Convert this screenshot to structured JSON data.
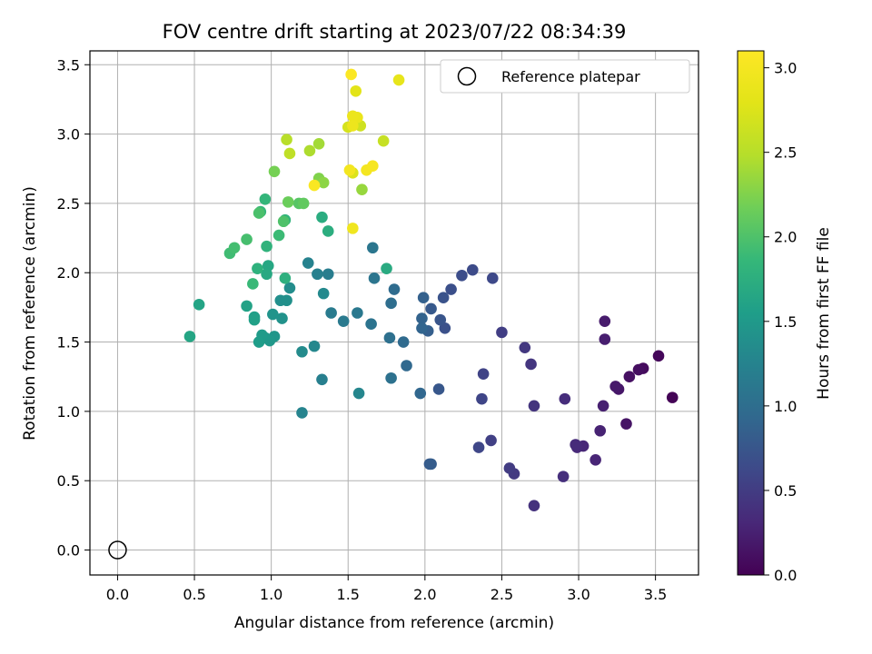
{
  "chart_data": {
    "type": "scatter",
    "title": "FOV centre drift starting at 2023/07/22 08:34:39",
    "xlabel": "Angular distance from reference (arcmin)",
    "ylabel": "Rotation from reference (arcmin)",
    "xlim": [
      -0.18,
      3.78
    ],
    "ylim": [
      -0.18,
      3.6
    ],
    "xticks": [
      "0.0",
      "0.5",
      "1.0",
      "1.5",
      "2.0",
      "2.5",
      "3.0",
      "3.5"
    ],
    "yticks": [
      "0.0",
      "0.5",
      "1.0",
      "1.5",
      "2.0",
      "2.5",
      "3.0",
      "3.5"
    ],
    "grid": true,
    "legend": {
      "label": "Reference platepar",
      "placement": "top-right"
    },
    "reference_point": {
      "x": 0.0,
      "y": 0.0
    },
    "colorbar": {
      "label": "Hours from first FF file",
      "colormap": "viridis",
      "range": [
        0.0,
        3.1
      ],
      "ticks": [
        "0.0",
        "0.5",
        "1.0",
        "1.5",
        "2.0",
        "2.5",
        "3.0"
      ]
    },
    "points": [
      [
        3.61,
        1.1,
        0.02
      ],
      [
        3.52,
        1.4,
        0.05
      ],
      [
        3.42,
        1.31,
        0.08
      ],
      [
        3.39,
        1.3,
        0.1
      ],
      [
        3.33,
        1.25,
        0.12
      ],
      [
        3.31,
        0.91,
        0.15
      ],
      [
        3.26,
        1.16,
        0.17
      ],
      [
        3.24,
        1.18,
        0.19
      ],
      [
        3.17,
        1.65,
        0.21
      ],
      [
        3.17,
        1.52,
        0.23
      ],
      [
        3.16,
        1.04,
        0.25
      ],
      [
        3.14,
        0.86,
        0.27
      ],
      [
        3.11,
        0.65,
        0.29
      ],
      [
        3.03,
        0.75,
        0.3
      ],
      [
        2.99,
        0.74,
        0.32
      ],
      [
        2.98,
        0.76,
        0.34
      ],
      [
        2.91,
        1.09,
        0.36
      ],
      [
        2.9,
        0.53,
        0.38
      ],
      [
        2.71,
        0.32,
        0.4
      ],
      [
        2.71,
        1.04,
        0.42
      ],
      [
        2.69,
        1.34,
        0.44
      ],
      [
        2.65,
        1.46,
        0.46
      ],
      [
        2.58,
        0.55,
        0.48
      ],
      [
        2.55,
        0.59,
        0.5
      ],
      [
        2.5,
        1.57,
        0.52
      ],
      [
        2.43,
        0.79,
        0.54
      ],
      [
        2.38,
        1.27,
        0.56
      ],
      [
        2.37,
        1.09,
        0.58
      ],
      [
        2.35,
        0.74,
        0.6
      ],
      [
        2.44,
        1.96,
        0.62
      ],
      [
        2.31,
        2.02,
        0.64
      ],
      [
        2.24,
        1.98,
        0.66
      ],
      [
        2.17,
        1.88,
        0.68
      ],
      [
        2.13,
        1.6,
        0.7
      ],
      [
        2.12,
        1.82,
        0.72
      ],
      [
        2.1,
        1.66,
        0.74
      ],
      [
        2.09,
        1.16,
        0.76
      ],
      [
        2.04,
        1.74,
        0.78
      ],
      [
        2.03,
        0.62,
        0.8
      ],
      [
        2.04,
        0.62,
        0.82
      ],
      [
        2.02,
        1.58,
        0.84
      ],
      [
        1.99,
        1.82,
        0.86
      ],
      [
        1.98,
        1.67,
        0.88
      ],
      [
        1.98,
        1.6,
        0.9
      ],
      [
        1.97,
        1.13,
        0.92
      ],
      [
        1.88,
        1.33,
        0.94
      ],
      [
        1.86,
        1.5,
        0.96
      ],
      [
        1.8,
        1.88,
        0.98
      ],
      [
        1.78,
        1.78,
        1.0
      ],
      [
        1.77,
        1.53,
        1.02
      ],
      [
        1.78,
        1.24,
        1.04
      ],
      [
        1.65,
        1.63,
        1.06
      ],
      [
        1.67,
        1.96,
        1.08
      ],
      [
        1.66,
        2.18,
        1.1
      ],
      [
        1.56,
        1.71,
        1.12
      ],
      [
        1.47,
        1.65,
        1.14
      ],
      [
        1.39,
        1.71,
        1.16
      ],
      [
        1.37,
        1.99,
        1.18
      ],
      [
        1.33,
        1.23,
        1.2
      ],
      [
        1.3,
        1.99,
        1.22
      ],
      [
        1.24,
        2.07,
        1.24
      ],
      [
        1.2,
        0.99,
        1.26
      ],
      [
        1.57,
        1.13,
        1.28
      ],
      [
        1.28,
        1.47,
        1.3
      ],
      [
        1.34,
        1.85,
        1.32
      ],
      [
        1.2,
        1.43,
        1.34
      ],
      [
        1.12,
        1.89,
        1.36
      ],
      [
        1.06,
        1.8,
        1.38
      ],
      [
        1.1,
        1.8,
        1.4
      ],
      [
        1.07,
        1.67,
        1.42
      ],
      [
        1.01,
        1.7,
        1.44
      ],
      [
        1.02,
        1.54,
        1.46
      ],
      [
        0.99,
        1.51,
        1.48
      ],
      [
        0.96,
        1.53,
        1.5
      ],
      [
        0.94,
        1.55,
        1.52
      ],
      [
        0.92,
        1.5,
        1.54
      ],
      [
        0.89,
        1.68,
        1.56
      ],
      [
        0.89,
        1.66,
        1.58
      ],
      [
        0.84,
        1.76,
        1.6
      ],
      [
        0.53,
        1.77,
        1.62
      ],
      [
        0.47,
        1.54,
        1.64
      ],
      [
        0.98,
        2.05,
        1.66
      ],
      [
        0.97,
        1.99,
        1.68
      ],
      [
        1.75,
        2.03,
        1.7
      ],
      [
        1.33,
        2.4,
        1.72
      ],
      [
        1.37,
        2.3,
        1.74
      ],
      [
        1.09,
        1.96,
        1.76
      ],
      [
        0.91,
        2.03,
        1.78
      ],
      [
        0.97,
        2.19,
        1.8
      ],
      [
        1.09,
        2.38,
        1.82
      ],
      [
        0.96,
        2.53,
        1.84
      ],
      [
        0.93,
        2.44,
        1.86
      ],
      [
        0.88,
        1.92,
        1.88
      ],
      [
        1.05,
        2.27,
        1.9
      ],
      [
        0.73,
        2.14,
        1.92
      ],
      [
        0.76,
        2.18,
        1.94
      ],
      [
        0.84,
        2.24,
        1.96
      ],
      [
        0.92,
        2.43,
        1.98
      ],
      [
        1.08,
        2.37,
        2.0
      ],
      [
        1.18,
        2.5,
        2.05
      ],
      [
        1.21,
        2.5,
        2.1
      ],
      [
        1.11,
        2.51,
        2.15
      ],
      [
        1.02,
        2.73,
        2.2
      ],
      [
        1.31,
        2.68,
        2.25
      ],
      [
        1.34,
        2.65,
        2.3
      ],
      [
        1.59,
        2.6,
        2.35
      ],
      [
        1.31,
        2.93,
        2.4
      ],
      [
        1.25,
        2.88,
        2.45
      ],
      [
        1.1,
        2.96,
        2.5
      ],
      [
        1.12,
        2.86,
        2.55
      ],
      [
        1.73,
        2.95,
        2.6
      ],
      [
        1.58,
        3.06,
        2.65
      ],
      [
        1.5,
        3.05,
        2.7
      ],
      [
        1.53,
        2.72,
        2.75
      ],
      [
        1.55,
        3.31,
        2.8
      ],
      [
        1.83,
        3.39,
        2.85
      ],
      [
        1.56,
        3.12,
        2.88
      ],
      [
        1.53,
        3.13,
        2.9
      ],
      [
        1.53,
        3.06,
        2.92
      ],
      [
        1.53,
        2.32,
        2.95
      ],
      [
        1.51,
        2.74,
        2.98
      ],
      [
        1.62,
        2.74,
        3.0
      ],
      [
        1.66,
        2.77,
        3.02
      ],
      [
        1.28,
        2.63,
        3.05
      ],
      [
        1.52,
        3.43,
        3.08
      ]
    ]
  }
}
